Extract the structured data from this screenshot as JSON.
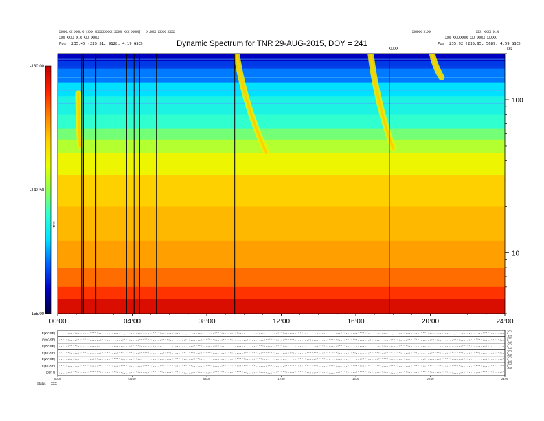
{
  "header": {
    "title": "Dynamic Spectrum for TNR 29-AUG-2015, DOY = 241",
    "left_line1": "XXXX.XX-XXX.X [XXX XXXXXXXXX XXXX XXX XXXX] - X.XXX XXXX XXXX",
    "left_line2": "XXX XXXX X.X XXX XXXX",
    "left_line3_label": "Pos",
    "left_line3_value": "235.45 (235.51, 9128, 4.19 GSE)",
    "right_line1": "XXXXX X.XX",
    "right_line1b": "XXX XXXX X.X",
    "right_line2": "XXX XXXXXXXX XXX XXXX XXXXX",
    "right_line3_label": "Pos",
    "right_line3_value": "235.92 (235.95, 5689, 4.59 GSE)",
    "mid_tag": "XXXXX",
    "corner_tag": "kHz"
  },
  "chart_data": {
    "type": "heatmap",
    "title": "Dynamic Spectrum for TNR 29-AUG-2015, DOY = 241",
    "x": {
      "label": "",
      "range_hours": [
        0,
        24
      ],
      "ticks": [
        "00:00",
        "04:00",
        "08:00",
        "12:00",
        "16:00",
        "20:00",
        "24:00"
      ]
    },
    "y": {
      "scale": "log",
      "range_khz": [
        4,
        200
      ],
      "ticks": [
        "10",
        "100"
      ]
    },
    "colorbar": {
      "label": "TNR",
      "range": [
        -155.0,
        -130.0
      ],
      "ticks": [
        "-130.00",
        "-142.50",
        "-155.00"
      ],
      "colors": [
        "#000040",
        "#0000c0",
        "#0060ff",
        "#00e0ff",
        "#30ffd0",
        "#90ff50",
        "#e8ff00",
        "#ffd000",
        "#ff8000",
        "#ff2000",
        "#c00000"
      ]
    },
    "bands": [
      {
        "from_khz": 180,
        "to_khz": 200,
        "level": 0.1
      },
      {
        "from_khz": 160,
        "to_khz": 180,
        "level": 0.16
      },
      {
        "from_khz": 130,
        "to_khz": 160,
        "level": 0.22
      },
      {
        "from_khz": 105,
        "to_khz": 130,
        "level": 0.3
      },
      {
        "from_khz": 80,
        "to_khz": 105,
        "level": 0.36
      },
      {
        "from_khz": 65,
        "to_khz": 80,
        "level": 0.4
      },
      {
        "from_khz": 55,
        "to_khz": 65,
        "level": 0.47
      },
      {
        "from_khz": 45,
        "to_khz": 55,
        "level": 0.54
      },
      {
        "from_khz": 32,
        "to_khz": 45,
        "level": 0.62
      },
      {
        "from_khz": 20,
        "to_khz": 32,
        "level": 0.7
      },
      {
        "from_khz": 12,
        "to_khz": 20,
        "level": 0.73
      },
      {
        "from_khz": 8,
        "to_khz": 12,
        "level": 0.76
      },
      {
        "from_khz": 6,
        "to_khz": 8,
        "level": 0.82
      },
      {
        "from_khz": 5,
        "to_khz": 6,
        "level": 0.88
      },
      {
        "from_khz": 4,
        "to_khz": 5,
        "level": 0.96
      }
    ],
    "type_iii_bursts": [
      {
        "start_h": 9.6,
        "end_h": 11.2,
        "from_khz": 200,
        "to_khz": 45
      },
      {
        "start_h": 16.8,
        "end_h": 18.0,
        "from_khz": 200,
        "to_khz": 48
      },
      {
        "start_h": 20.1,
        "end_h": 20.6,
        "from_khz": 200,
        "to_khz": 140
      },
      {
        "start_h": 1.1,
        "end_h": 1.2,
        "from_khz": 110,
        "to_khz": 50
      }
    ],
    "gap_lines_h": [
      1.3,
      1.38,
      2.05,
      3.7,
      4.1,
      4.4,
      5.3,
      9.5,
      17.8
    ]
  },
  "bottom_panel": {
    "left_labels": [
      "E(X,GSE)",
      "E(Y,GSE)",
      "E(Z,GSE)",
      "E(X,GSE)",
      "E(X,GSE)",
      "E(X,GSE)",
      "|B|(nT)"
    ],
    "right_ticks": [
      "100",
      "0",
      "-100",
      "100",
      "0",
      "-100",
      "100",
      "0",
      "-100",
      "100",
      "0",
      "-100",
      "100",
      "0",
      "-100",
      "100",
      "0",
      "-100"
    ],
    "time_ticks": [
      "00:00",
      "04:00",
      "08:00",
      "12:00",
      "16:00",
      "20:00",
      "24:00"
    ],
    "status_label": "Status",
    "status_value": "XXX"
  }
}
